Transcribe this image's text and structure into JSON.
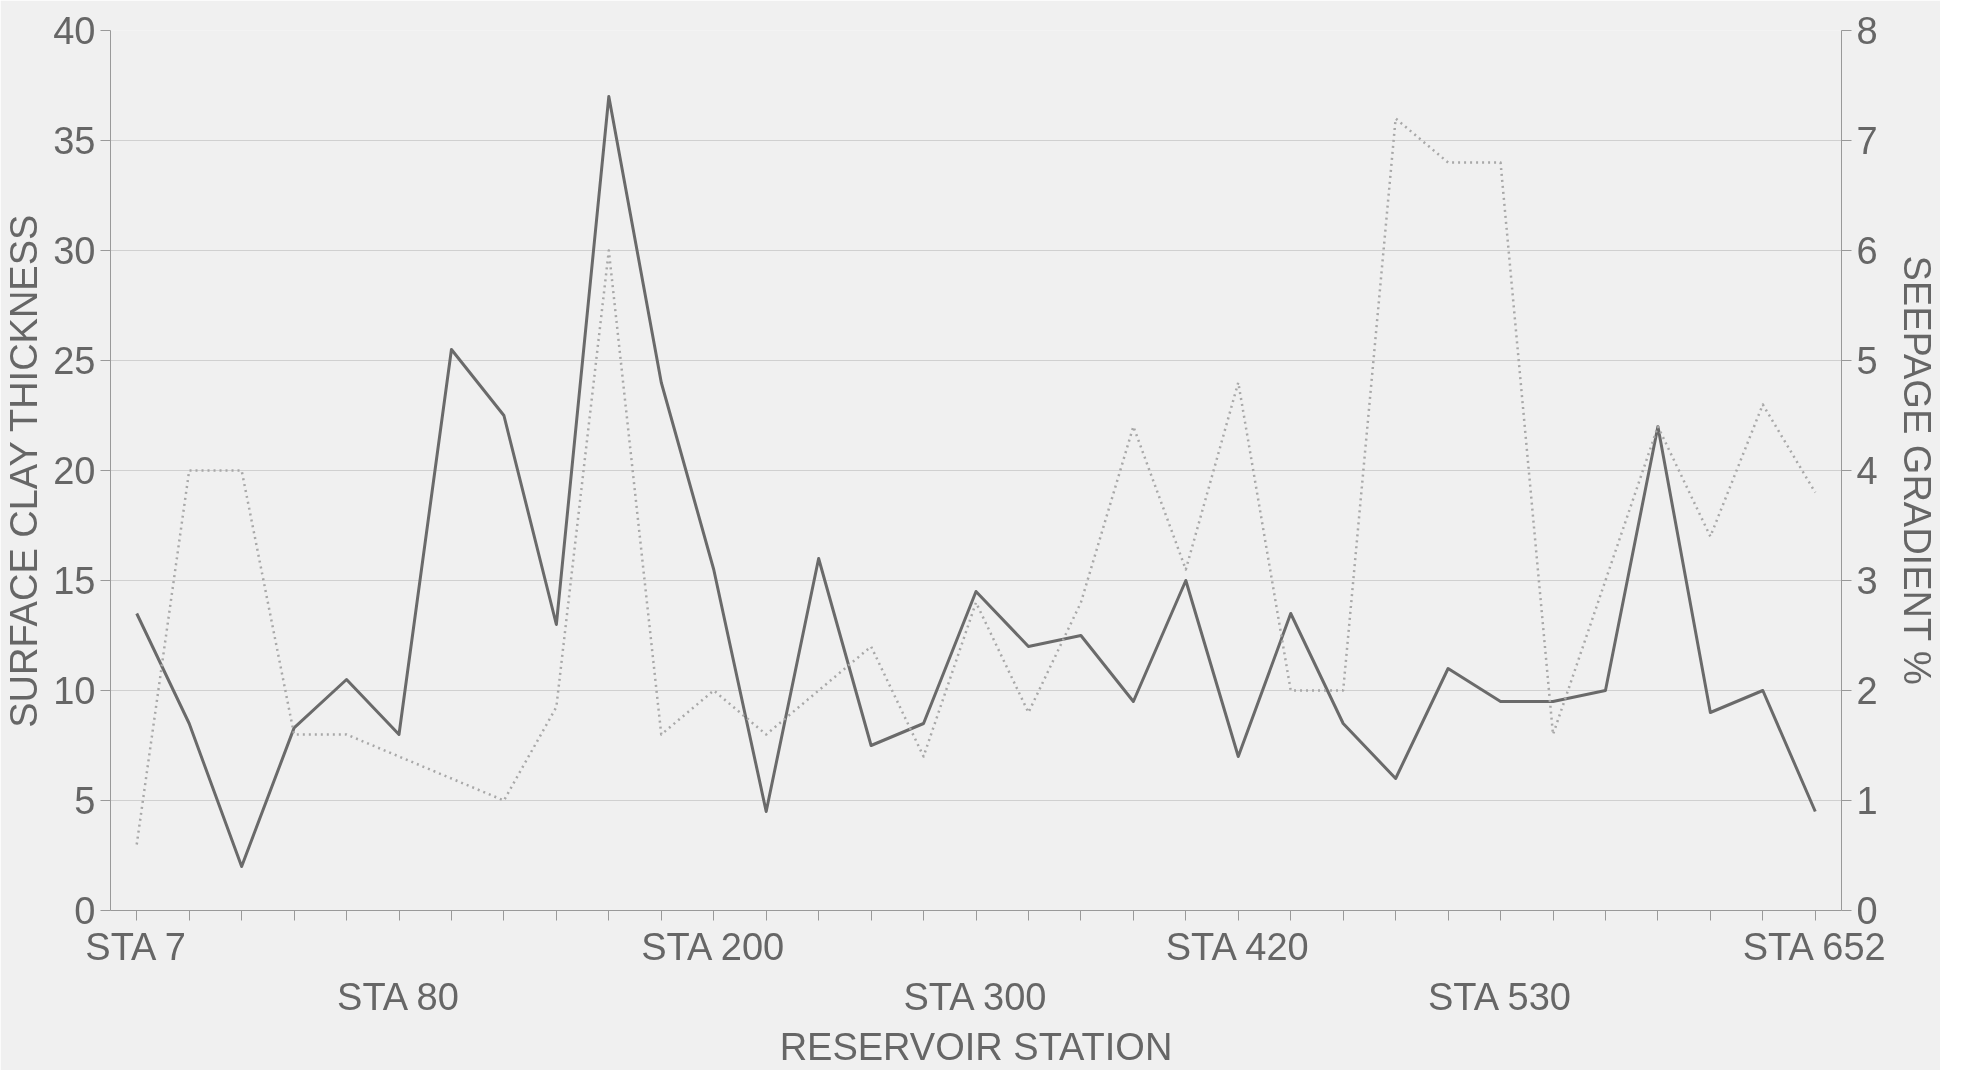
{
  "chart_data": {
    "type": "line",
    "xlabel": "RESERVOIR STATION",
    "ylabel": "SURFACE CLAY THICKNESS",
    "y2label": "SEEPAGE GRADIENT %",
    "categories": [
      "STA 7",
      null,
      null,
      null,
      null,
      "STA 80",
      null,
      null,
      null,
      null,
      null,
      "STA 200",
      null,
      null,
      null,
      null,
      "STA 300",
      null,
      null,
      null,
      null,
      "STA 420",
      null,
      null,
      null,
      null,
      "STA 530",
      null,
      null,
      null,
      null,
      null,
      "STA 652"
    ],
    "series": [
      {
        "color": "#6a6a6a",
        "line_style": "solid",
        "values": [
          13.5,
          8.5,
          2,
          8.3,
          10.5,
          8,
          25.5,
          22.5,
          13,
          37,
          24,
          15.5,
          4.5,
          16,
          7.5,
          8.5,
          14.5,
          12,
          12.5,
          9.5,
          15,
          7,
          13.5,
          8.5,
          6,
          11,
          9.5,
          9.5,
          10,
          22,
          9,
          10,
          4.5
        ]
      },
      {
        "color": "#a8a8a8",
        "line_style": "dotted",
        "axis": "y2",
        "values": [
          0.6,
          4.0,
          4.0,
          1.6,
          1.6,
          1.4,
          1.2,
          1.0,
          1.85,
          6.0,
          1.6,
          2.0,
          1.6,
          2.0,
          2.4,
          1.4,
          2.8,
          1.8,
          2.8,
          4.4,
          3.1,
          4.8,
          2.0,
          2.0,
          7.2,
          6.8,
          6.8,
          1.6,
          3.0,
          4.4,
          3.4,
          4.6,
          3.8
        ]
      }
    ],
    "ylim": [
      0,
      40
    ],
    "yticks": [
      0,
      5,
      10,
      15,
      20,
      25,
      30,
      35,
      40
    ],
    "y2lim": [
      0,
      8
    ],
    "y2ticks": [
      0,
      1,
      2,
      3,
      4,
      5,
      6,
      7,
      8
    ],
    "grid": "y",
    "marker": "none"
  }
}
